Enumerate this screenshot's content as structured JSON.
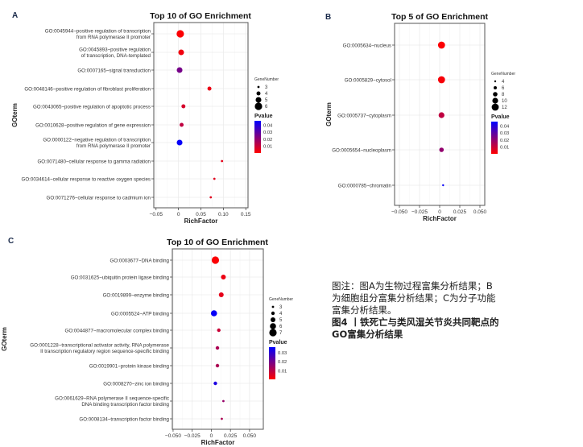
{
  "chart_data": [
    {
      "panel_label": "A",
      "type": "scatter",
      "title": "Top 10 of GO Enrichment",
      "xlabel": "RichFactor",
      "ylabel": "GOterm",
      "xlim": [
        -0.055,
        0.155
      ],
      "xticks": [
        -0.05,
        0,
        0.05,
        0.1,
        0.15
      ],
      "xtick_labels": [
        "−0.05",
        "0",
        "0.05",
        "0.10",
        "0.15"
      ],
      "grid": true,
      "size_legend": {
        "title": "GeneNumber",
        "values": [
          3,
          4,
          5,
          6
        ]
      },
      "color_legend": {
        "title": "Pvalue",
        "ticks": [
          0.04,
          0.03,
          0.02,
          0.01
        ],
        "range": [
          0.0005,
          0.046
        ],
        "low_color": "#FF0000",
        "high_color": "#0000FF"
      },
      "points": [
        {
          "term": [
            "GO:0045944~positive regulation of transcription",
            "from RNA polymerase II promoter"
          ],
          "rich_factor": 0.004,
          "gene_number": 6,
          "pvalue": 0.001
        },
        {
          "term": [
            "GO:0045893~positive regulation",
            "of transcription, DNA-templated"
          ],
          "rich_factor": 0.006,
          "gene_number": 5,
          "pvalue": 0.003
        },
        {
          "term": [
            "GO:0007165~signal transduction"
          ],
          "rich_factor": 0.0025,
          "gene_number": 5,
          "pvalue": 0.025
        },
        {
          "term": [
            "GO:0048146~positive regulation of fibroblast proliferation"
          ],
          "rich_factor": 0.069,
          "gene_number": 4,
          "pvalue": 0.004
        },
        {
          "term": [
            "GO:0043065~positive regulation of apoptotic process"
          ],
          "rich_factor": 0.011,
          "gene_number": 4,
          "pvalue": 0.008
        },
        {
          "term": [
            "GO:0010628~positive regulation of gene expression"
          ],
          "rich_factor": 0.007,
          "gene_number": 4,
          "pvalue": 0.012
        },
        {
          "term": [
            "GO:0000122~negative regulation of transcription",
            "from RNA polymerase II promoter"
          ],
          "rich_factor": 0.0025,
          "gene_number": 5,
          "pvalue": 0.045
        },
        {
          "term": [
            "GO:0071480~cellular response to gamma radiation"
          ],
          "rich_factor": 0.097,
          "gene_number": 3,
          "pvalue": 0.005
        },
        {
          "term": [
            "GO:0034614~cellular response to reactive oxygen species"
          ],
          "rich_factor": 0.08,
          "gene_number": 3,
          "pvalue": 0.006
        },
        {
          "term": [
            "GO:0071276~cellular response to cadmium ion"
          ],
          "rich_factor": 0.072,
          "gene_number": 3,
          "pvalue": 0.006
        }
      ]
    },
    {
      "panel_label": "B",
      "type": "scatter",
      "title": "Top 5 of GO Enrichment",
      "xlabel": "RichFactor",
      "ylabel": "GOterm",
      "xlim": [
        -0.056,
        0.056
      ],
      "xticks": [
        -0.05,
        -0.025,
        0,
        0.025,
        0.05
      ],
      "xtick_labels": [
        "−0.050",
        "−0.025",
        "0",
        "0.025",
        "0.050"
      ],
      "grid": true,
      "size_legend": {
        "title": "GeneNumber",
        "values": [
          4,
          6,
          8,
          10,
          12
        ]
      },
      "color_legend": {
        "title": "Pvalue",
        "ticks": [
          0.04,
          0.03,
          0.02,
          0.01
        ],
        "range": [
          0.0005,
          0.046
        ],
        "low_color": "#FF0000",
        "high_color": "#0000FF"
      },
      "points": [
        {
          "term": [
            "GO:0005634~nucleus"
          ],
          "rich_factor": 0.0023,
          "gene_number": 12,
          "pvalue": 0.001
        },
        {
          "term": [
            "GO:0005829~cytosol"
          ],
          "rich_factor": 0.0023,
          "gene_number": 12,
          "pvalue": 0.002
        },
        {
          "term": [
            "GO:0005737~cytoplasm"
          ],
          "rich_factor": 0.0023,
          "gene_number": 10,
          "pvalue": 0.012
        },
        {
          "term": [
            "GO:0005654~nucleoplasm"
          ],
          "rich_factor": 0.0023,
          "gene_number": 8,
          "pvalue": 0.02
        },
        {
          "term": [
            "GO:0000785~chromatin"
          ],
          "rich_factor": 0.0043,
          "gene_number": 4,
          "pvalue": 0.045
        }
      ]
    },
    {
      "panel_label": "C",
      "type": "scatter",
      "title": "Top 10 of GO Enrichment",
      "xlabel": "RichFactor",
      "ylabel": "GOterm",
      "xlim": [
        -0.051,
        0.068
      ],
      "xticks": [
        -0.05,
        -0.025,
        0,
        0.025,
        0.05
      ],
      "xtick_labels": [
        "−0.050",
        "−0.025",
        "0",
        "0.025",
        "0.050"
      ],
      "grid": true,
      "size_legend": {
        "title": "GeneNumber",
        "values": [
          3,
          4,
          5,
          6,
          7
        ]
      },
      "color_legend": {
        "title": "Pvalue",
        "ticks": [
          0.03,
          0.02,
          0.01
        ],
        "range": [
          0.0005,
          0.036
        ],
        "low_color": "#FF0000",
        "high_color": "#0000FF"
      },
      "points": [
        {
          "term": [
            "GO:0003677~DNA binding"
          ],
          "rich_factor": 0.0053,
          "gene_number": 7,
          "pvalue": 0.001
        },
        {
          "term": [
            "GO:0031625~ubiquitin protein ligase binding"
          ],
          "rich_factor": 0.0158,
          "gene_number": 5,
          "pvalue": 0.003
        },
        {
          "term": [
            "GO:0019899~enzyme binding"
          ],
          "rich_factor": 0.013,
          "gene_number": 5,
          "pvalue": 0.004
        },
        {
          "term": [
            "GO:0005524~ATP binding"
          ],
          "rich_factor": 0.0035,
          "gene_number": 6,
          "pvalue": 0.035
        },
        {
          "term": [
            "GO:0044877~macromolecular complex binding"
          ],
          "rich_factor": 0.0098,
          "gene_number": 4,
          "pvalue": 0.008
        },
        {
          "term": [
            "GO:0001228~transcriptional activator activity, RNA polymerase",
            "II transcription regulatory region sequence-specific binding"
          ],
          "rich_factor": 0.008,
          "gene_number": 4,
          "pvalue": 0.012
        },
        {
          "term": [
            "GO:0019901~protein kinase binding"
          ],
          "rich_factor": 0.008,
          "gene_number": 4,
          "pvalue": 0.012
        },
        {
          "term": [
            "GO:0008270~zinc ion binding"
          ],
          "rich_factor": 0.0053,
          "gene_number": 4,
          "pvalue": 0.032
        },
        {
          "term": [
            "GO:0061629~RNA polymerase II sequence-specific",
            "DNA binding transcription factor binding"
          ],
          "rich_factor": 0.0158,
          "gene_number": 3,
          "pvalue": 0.015
        },
        {
          "term": [
            "GO:0008134~transcription factor binding"
          ],
          "rich_factor": 0.0137,
          "gene_number": 3,
          "pvalue": 0.012
        }
      ]
    }
  ],
  "caption": {
    "note_lines": [
      "图注：图A为生物过程富集分析结果；B",
      "为细胞组分富集分析结果；C为分子功能",
      "富集分析结果。"
    ],
    "title_lines": [
      "图4 丨铁死亡与类风湿关节炎共同靶点的",
      "GO富集分析结果"
    ]
  }
}
